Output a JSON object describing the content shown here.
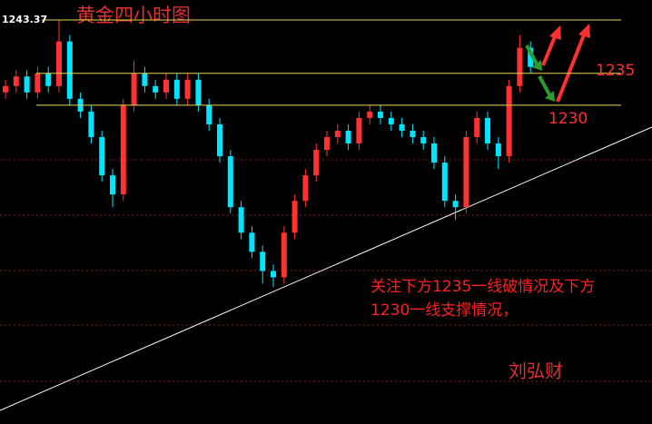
{
  "chart_data": {
    "type": "candlestick",
    "title": "黄金四小时图",
    "open": [
      1232,
      1233,
      1234.5,
      1232,
      1235,
      1233,
      1240,
      1231,
      1229,
      1225,
      1219,
      1216,
      1230,
      1235,
      1233,
      1232,
      1234,
      1231,
      1234,
      1230,
      1227,
      1222,
      1214,
      1210,
      1207,
      1204,
      1203,
      1210,
      1215,
      1219,
      1223,
      1225,
      1226,
      1224,
      1228,
      1229,
      1228,
      1227,
      1226,
      1225,
      1224,
      1221,
      1215,
      1214,
      1225,
      1228,
      1224,
      1222,
      1233,
      1239
    ],
    "high": [
      1234,
      1235.5,
      1235.5,
      1236,
      1236,
      1243.37,
      1241,
      1232,
      1230,
      1226,
      1220,
      1231,
      1237,
      1236,
      1234,
      1235,
      1235,
      1235,
      1235,
      1231,
      1228,
      1223,
      1215,
      1211,
      1208,
      1205,
      1211,
      1216,
      1220,
      1224,
      1226,
      1227,
      1227,
      1229,
      1230,
      1230,
      1229,
      1228,
      1227,
      1226,
      1225,
      1222,
      1216,
      1226,
      1229,
      1229,
      1225,
      1234,
      1241,
      1240
    ],
    "low": [
      1231,
      1232,
      1231,
      1231,
      1232,
      1232,
      1230,
      1228,
      1224,
      1218,
      1214,
      1215,
      1229,
      1232,
      1231,
      1231,
      1230,
      1230,
      1229,
      1226,
      1221,
      1213,
      1209,
      1206,
      1202,
      1201.5,
      1202,
      1209,
      1214,
      1218,
      1222,
      1224,
      1223,
      1223,
      1227,
      1227,
      1226,
      1225,
      1224,
      1223,
      1220,
      1214,
      1212,
      1213,
      1224,
      1223,
      1220,
      1221,
      1232,
      1235
    ],
    "close": [
      1233,
      1234.5,
      1232,
      1235,
      1233,
      1240,
      1231,
      1229,
      1225,
      1219,
      1216,
      1230,
      1235,
      1233,
      1232,
      1234,
      1231,
      1234,
      1230,
      1227,
      1222,
      1214,
      1210,
      1207,
      1204,
      1203,
      1210,
      1215,
      1219,
      1223,
      1225,
      1226,
      1224,
      1228,
      1229,
      1228,
      1227,
      1226,
      1225,
      1224,
      1221,
      1215,
      1214,
      1225,
      1228,
      1224,
      1222,
      1233,
      1239,
      1236
    ],
    "up_color": "#ff3232",
    "down_color": "#00e5ff",
    "ylim": [
      1180,
      1246.5
    ],
    "hlines": [
      1243.37,
      1235,
      1230
    ],
    "hline_color": "#e6d85a",
    "annotation": [
      "关注下方1235一线破情况及下方",
      "1230一线支撑情况，"
    ],
    "author": "刘弘财"
  }
}
